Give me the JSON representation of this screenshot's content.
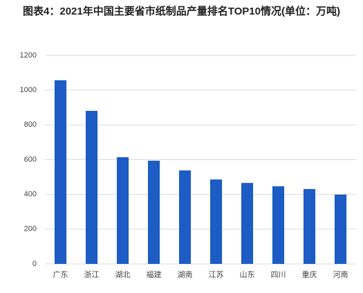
{
  "chart_data": {
    "type": "bar",
    "title": "图表4：2021年中国主要省市纸制品产量排名TOP10情况(单位：万吨)",
    "categories": [
      "广东",
      "浙江",
      "湖北",
      "福建",
      "湖南",
      "江苏",
      "山东",
      "四川",
      "重庆",
      "河南"
    ],
    "values": [
      1057,
      881,
      614,
      594,
      538,
      486,
      466,
      447,
      431,
      399
    ],
    "color": "#1c5cc4",
    "ylim": [
      0,
      1200
    ],
    "yticks": [
      0,
      200,
      400,
      600,
      800,
      1000,
      1200
    ],
    "grid": true
  }
}
